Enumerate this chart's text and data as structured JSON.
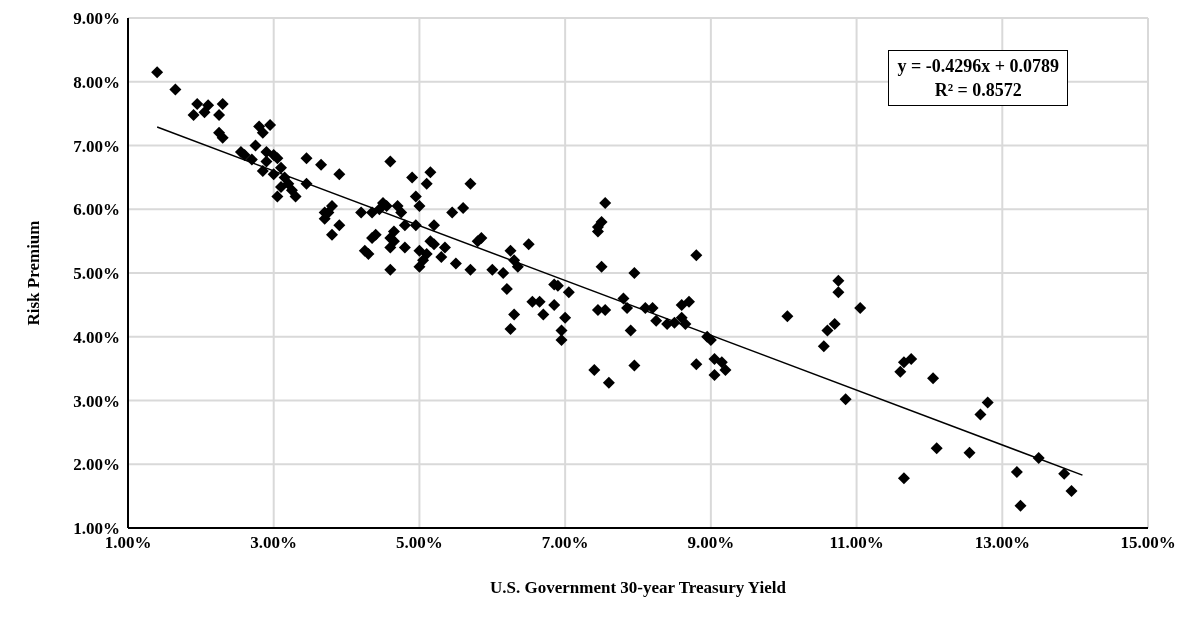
{
  "chart_data": {
    "type": "scatter",
    "xlabel": "U.S. Government 30-year Treasury Yield",
    "ylabel": "Risk Premium",
    "xlim": [
      1,
      15
    ],
    "xticks": [
      {
        "value": 1,
        "label": "1.00%"
      },
      {
        "value": 3,
        "label": "3.00%"
      },
      {
        "value": 5,
        "label": "5.00%"
      },
      {
        "value": 7,
        "label": "7.00%"
      },
      {
        "value": 9,
        "label": "9.00%"
      },
      {
        "value": 11,
        "label": "11.00%"
      },
      {
        "value": 13,
        "label": "13.00%"
      },
      {
        "value": 15,
        "label": "15.00%"
      }
    ],
    "ylim": [
      1,
      9
    ],
    "yticks": [
      {
        "value": 1,
        "label": "1.00%"
      },
      {
        "value": 2,
        "label": "2.00%"
      },
      {
        "value": 3,
        "label": "3.00%"
      },
      {
        "value": 4,
        "label": "4.00%"
      },
      {
        "value": 5,
        "label": "5.00%"
      },
      {
        "value": 6,
        "label": "6.00%"
      },
      {
        "value": 7,
        "label": "7.00%"
      },
      {
        "value": 8,
        "label": "8.00%"
      },
      {
        "value": 9,
        "label": "9.00%"
      }
    ],
    "grid": true,
    "marker": "diamond",
    "annotations": [
      "y = -0.4296x + 0.0789",
      "R² = 0.8572"
    ],
    "series": [
      {
        "color": "#000000",
        "x": [
          1.4,
          1.65,
          1.9,
          1.95,
          2.05,
          2.1,
          2.3,
          2.25,
          2.25,
          2.3,
          2.55,
          2.6,
          2.7,
          2.75,
          2.8,
          2.85,
          2.9,
          2.95,
          2.85,
          2.9,
          3.0,
          3.0,
          3.05,
          3.05,
          3.1,
          3.1,
          3.15,
          3.2,
          3.25,
          3.3,
          3.45,
          3.45,
          3.65,
          3.7,
          3.7,
          3.75,
          3.8,
          3.8,
          3.9,
          3.9,
          4.2,
          4.25,
          4.3,
          4.35,
          4.35,
          4.4,
          4.45,
          4.5,
          4.55,
          4.6,
          4.6,
          4.6,
          4.6,
          4.65,
          4.65,
          4.7,
          4.75,
          4.8,
          4.8,
          4.9,
          4.95,
          4.95,
          5.0,
          5.0,
          5.0,
          5.05,
          5.1,
          5.1,
          5.15,
          5.15,
          5.2,
          5.2,
          5.3,
          5.35,
          5.45,
          5.5,
          5.6,
          5.7,
          5.7,
          5.8,
          5.85,
          6.0,
          6.15,
          6.2,
          6.25,
          6.25,
          6.3,
          6.3,
          6.35,
          6.5,
          6.55,
          6.65,
          6.7,
          6.85,
          6.85,
          6.9,
          6.95,
          6.95,
          7.0,
          7.05,
          7.4,
          7.45,
          7.45,
          7.45,
          7.5,
          7.5,
          7.55,
          7.55,
          7.6,
          7.8,
          7.85,
          7.9,
          7.95,
          7.95,
          8.1,
          8.2,
          8.25,
          8.4,
          8.5,
          8.6,
          8.6,
          8.65,
          8.7,
          8.8,
          8.8,
          8.95,
          9.0,
          9.05,
          9.05,
          9.15,
          9.2,
          10.05,
          10.55,
          10.6,
          10.7,
          10.75,
          10.75,
          10.85,
          11.05,
          11.6,
          11.65,
          11.65,
          11.75,
          12.05,
          12.1,
          12.55,
          12.7,
          12.8,
          13.2,
          13.25,
          13.5,
          13.85,
          13.95
        ],
        "values": [
          8.15,
          7.88,
          7.48,
          7.65,
          7.52,
          7.63,
          7.65,
          7.48,
          7.2,
          7.12,
          6.9,
          6.85,
          6.78,
          7.0,
          7.3,
          7.2,
          6.9,
          7.32,
          6.6,
          6.75,
          6.85,
          6.55,
          6.8,
          6.2,
          6.65,
          6.35,
          6.5,
          6.4,
          6.3,
          6.2,
          6.8,
          6.4,
          6.7,
          5.95,
          5.85,
          5.95,
          6.05,
          5.6,
          6.55,
          5.75,
          5.95,
          5.35,
          5.3,
          5.95,
          5.55,
          5.6,
          6.0,
          6.1,
          6.05,
          6.75,
          5.55,
          5.4,
          5.05,
          5.65,
          5.5,
          6.05,
          5.95,
          5.4,
          5.75,
          6.5,
          6.2,
          5.75,
          6.05,
          5.1,
          5.35,
          5.2,
          5.3,
          6.4,
          6.58,
          5.5,
          5.75,
          5.45,
          5.25,
          5.4,
          5.95,
          5.15,
          6.02,
          6.4,
          5.05,
          5.5,
          5.55,
          5.05,
          5.0,
          4.75,
          5.35,
          4.12,
          5.2,
          4.35,
          5.1,
          5.45,
          4.55,
          4.55,
          4.35,
          4.5,
          4.82,
          4.8,
          3.95,
          4.1,
          4.3,
          4.7,
          3.48,
          5.65,
          5.72,
          4.42,
          5.8,
          5.1,
          6.1,
          4.42,
          3.28,
          4.6,
          4.45,
          4.1,
          5.0,
          3.55,
          4.45,
          4.45,
          4.25,
          4.2,
          4.22,
          4.5,
          4.3,
          4.2,
          4.55,
          5.28,
          3.57,
          4.0,
          3.95,
          3.65,
          3.4,
          3.6,
          3.48,
          4.32,
          3.85,
          4.1,
          4.2,
          4.7,
          4.88,
          3.02,
          4.45,
          3.45,
          3.6,
          1.78,
          3.65,
          3.35,
          2.25,
          2.18,
          2.78,
          2.97,
          1.88,
          1.35,
          2.1,
          1.85,
          1.58
        ]
      },
      {
        "type": "line",
        "marker": "none",
        "color": "#000000",
        "x": [
          1.4,
          14.1
        ],
        "values": [
          7.29,
          1.83
        ]
      }
    ]
  }
}
